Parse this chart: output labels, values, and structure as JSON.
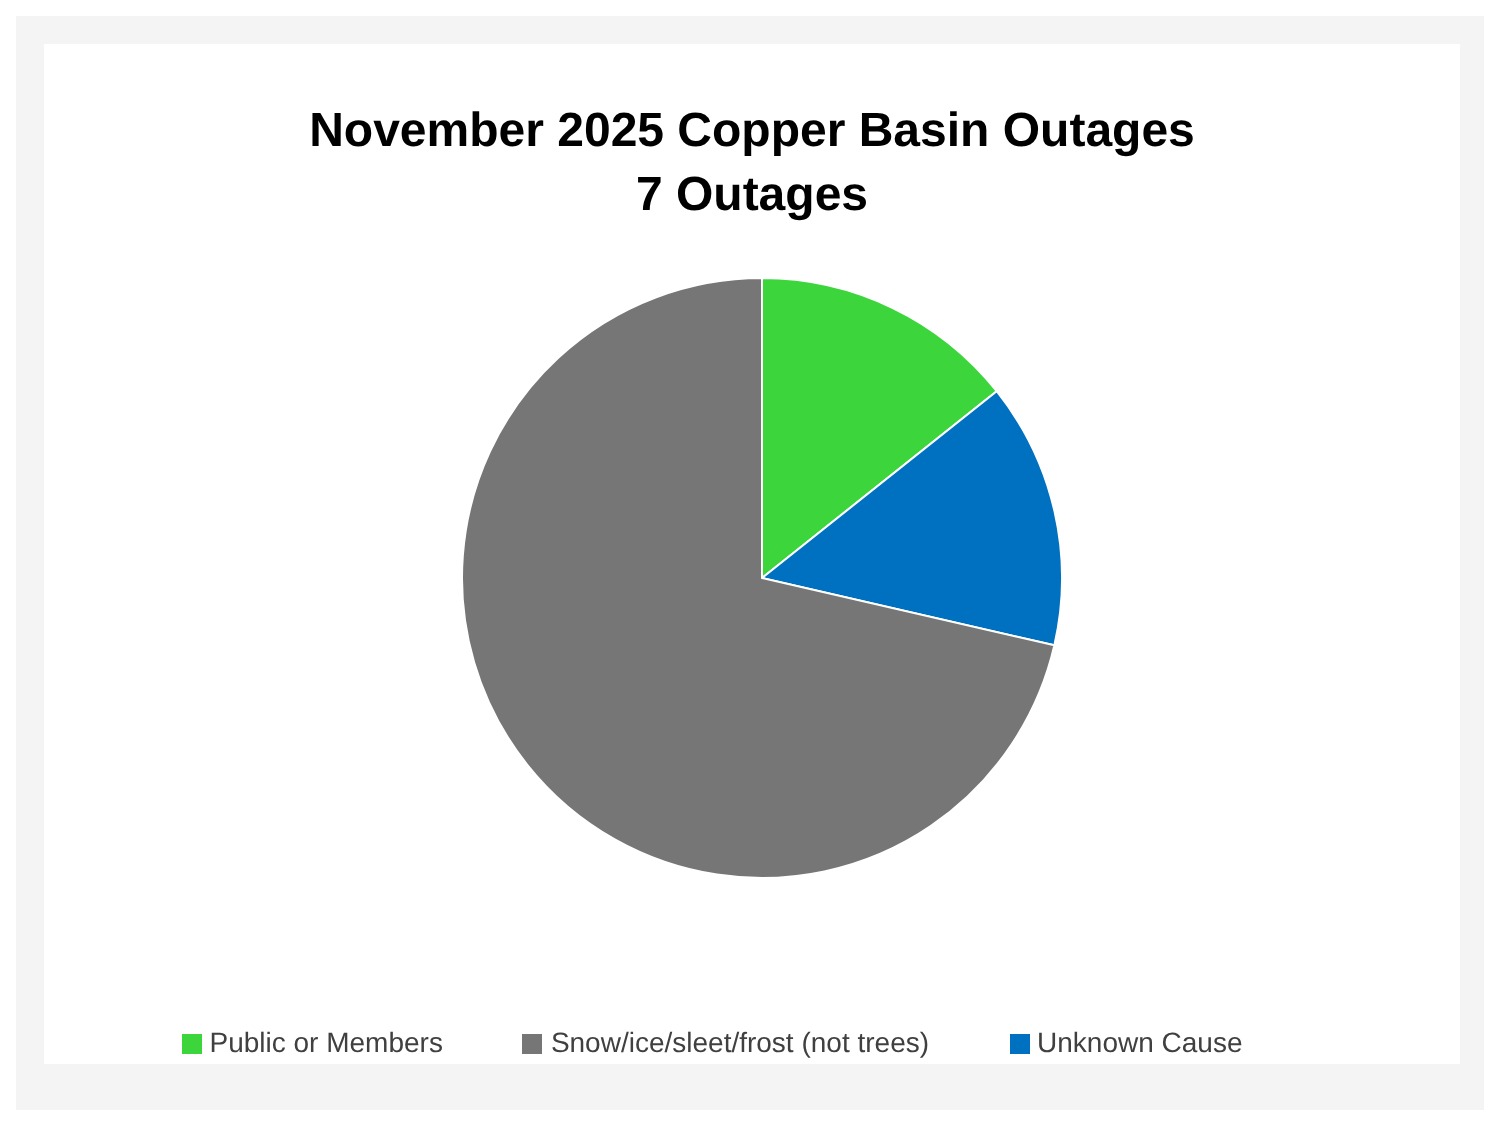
{
  "chart_data": {
    "type": "pie",
    "title": "November 2025 Copper Basin Outages",
    "subtitle": "7 Outages",
    "categories": [
      "Public or Members",
      "Unknown Cause",
      "Snow/ice/sleet/frost (not trees)"
    ],
    "values": [
      14.3,
      14.3,
      71.4
    ],
    "colors": [
      "#3cd63c",
      "#0070c0",
      "#767676"
    ],
    "legend": "bottom"
  }
}
